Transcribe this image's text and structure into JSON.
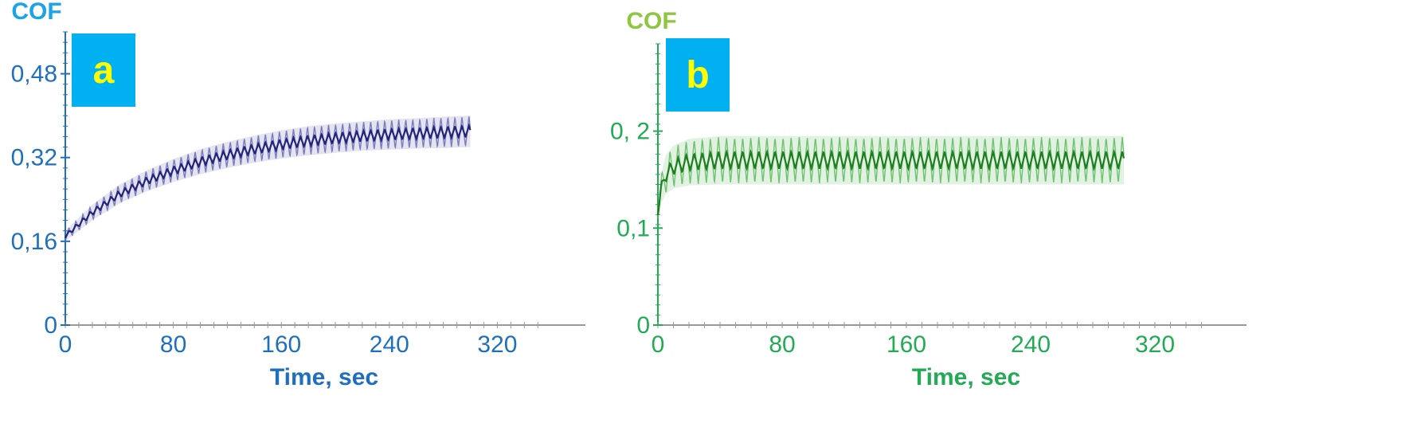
{
  "chart_data": [
    {
      "type": "line",
      "panel_label": "a",
      "ylabel": "COF",
      "xlabel": "Time, sec",
      "xlim": [
        0,
        350
      ],
      "ylim": [
        0,
        0.56
      ],
      "x_ticks": [
        0,
        80,
        160,
        240,
        320
      ],
      "x_tick_labels": [
        "0",
        "80",
        "160",
        "240",
        "320"
      ],
      "y_ticks": [
        0,
        0.16,
        0.32,
        0.48
      ],
      "y_tick_labels": [
        "0",
        "0,16",
        "0,32",
        "0,48"
      ],
      "series": [
        {
          "x": [
            0,
            20,
            40,
            60,
            80,
            100,
            120,
            140,
            160,
            180,
            200,
            220,
            240,
            260,
            280,
            300
          ],
          "y": [
            0.17,
            0.215,
            0.25,
            0.275,
            0.295,
            0.312,
            0.325,
            0.336,
            0.345,
            0.352,
            0.357,
            0.361,
            0.364,
            0.366,
            0.368,
            0.37
          ],
          "oscillation_amplitude": [
            0.01,
            0.015,
            0.018,
            0.02,
            0.022,
            0.024,
            0.025,
            0.026,
            0.027,
            0.028,
            0.028,
            0.028,
            0.029,
            0.029,
            0.03,
            0.03
          ]
        }
      ],
      "colors": {
        "axis": "#1f6fbf",
        "ylabel": "#1aa3e8",
        "xlabel": "#1f6fbf",
        "line": "#23237a",
        "band": "#6a6ab3",
        "label_bg": "#00b0f0",
        "label_fg": "#ffff00"
      }
    },
    {
      "type": "line",
      "panel_label": "b",
      "ylabel": "COF",
      "xlabel": "Time, sec",
      "xlim": [
        0,
        350
      ],
      "ylim": [
        0,
        0.29
      ],
      "x_ticks": [
        0,
        80,
        160,
        240,
        320
      ],
      "x_tick_labels": [
        "0",
        "80",
        "160",
        "240",
        "320"
      ],
      "y_ticks": [
        0,
        0.1,
        0.2
      ],
      "y_tick_labels": [
        "0",
        "0,1",
        "0, 2"
      ],
      "series": [
        {
          "x": [
            0,
            2,
            5,
            10,
            20,
            40,
            80,
            120,
            160,
            200,
            240,
            280,
            300
          ],
          "y": [
            0.115,
            0.14,
            0.155,
            0.163,
            0.168,
            0.17,
            0.17,
            0.17,
            0.17,
            0.17,
            0.17,
            0.17,
            0.17
          ],
          "oscillation_amplitude": [
            0.005,
            0.015,
            0.02,
            0.022,
            0.024,
            0.025,
            0.025,
            0.025,
            0.025,
            0.025,
            0.025,
            0.025,
            0.025
          ]
        }
      ],
      "colors": {
        "axis": "#22aa55",
        "ylabel": "#8dc63f",
        "xlabel": "#22aa55",
        "line": "#1e7d1e",
        "band": "#5cb85c",
        "label_bg": "#00b0f0",
        "label_fg": "#ffff00"
      }
    }
  ]
}
